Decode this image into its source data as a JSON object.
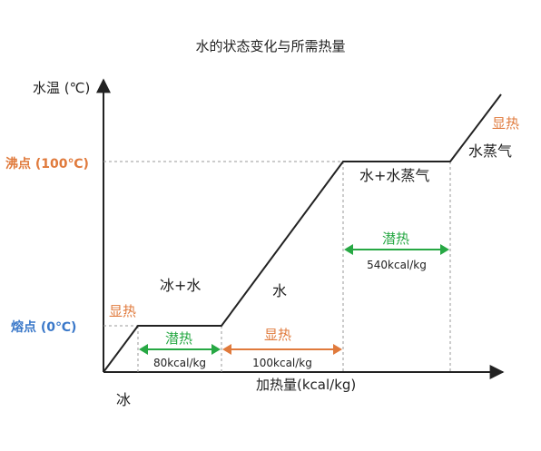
{
  "chart_data": {
    "type": "line",
    "title": "水的状态变化与所需热量",
    "xlabel": "加热量(kcal/kg)",
    "ylabel": "水温 (℃)",
    "y_ticks": [
      {
        "label": "熔点 (0℃)",
        "color": "#3a78c9"
      },
      {
        "label": "沸点 (100℃)",
        "color": "#e07a3c"
      }
    ],
    "region_labels": {
      "ice": "冰",
      "ice_water": "冰+水",
      "water": "水",
      "water_steam": "水+水蒸气",
      "steam": "水蒸气"
    },
    "phases": [
      {
        "kind": "sensible",
        "label": "显热",
        "color": "#e07a3c"
      },
      {
        "kind": "latent",
        "label": "潜热",
        "amount": "80kcal/kg",
        "color": "#27a844"
      },
      {
        "kind": "sensible",
        "label": "显热",
        "amount": "100kcal/kg",
        "color": "#e07a3c"
      },
      {
        "kind": "latent",
        "label": "潜热",
        "amount": "540kcal/kg",
        "color": "#27a844"
      },
      {
        "kind": "sensible",
        "label": "显热",
        "color": "#e07a3c"
      }
    ],
    "grid": false,
    "legend": "none"
  }
}
